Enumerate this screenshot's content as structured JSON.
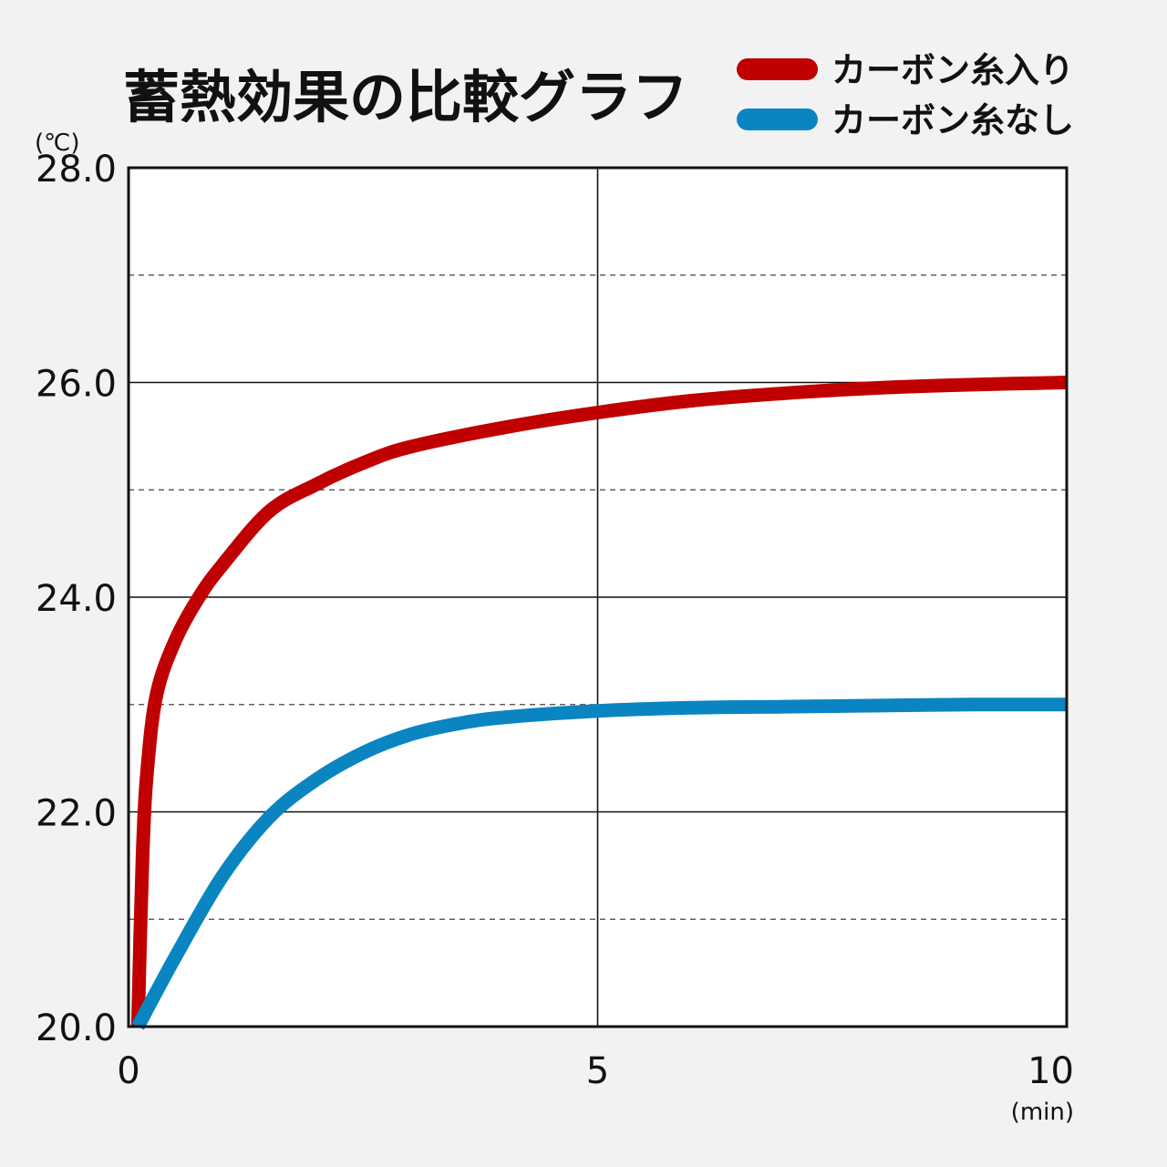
{
  "chart_data": {
    "type": "line",
    "title": "蓄熱効果の比較グラフ",
    "y_unit": "(℃)",
    "x_unit": "(min)",
    "xlim": [
      0,
      10
    ],
    "ylim": [
      20,
      28
    ],
    "x_ticks": [
      0,
      5,
      10
    ],
    "x_tick_labels": [
      "0",
      "5",
      "10"
    ],
    "y_ticks": [
      20,
      22,
      24,
      26,
      28
    ],
    "y_tick_labels": [
      "20.0",
      "22.0",
      "24.0",
      "26.0",
      "28.0"
    ],
    "y_minor_dashed": [
      21,
      23,
      25,
      27
    ],
    "grid": true,
    "legend_position": "top-right",
    "series": [
      {
        "name": "カーボン糸入り",
        "color": "#c00000",
        "x": [
          0.1,
          0.15,
          0.2,
          0.3,
          0.5,
          0.75,
          1,
          1.5,
          2,
          2.5,
          3,
          4,
          5,
          6,
          7,
          8,
          9,
          10
        ],
        "y": [
          20.0,
          21.6,
          22.4,
          23.1,
          23.6,
          24.0,
          24.3,
          24.8,
          25.05,
          25.25,
          25.4,
          25.58,
          25.72,
          25.83,
          25.9,
          25.95,
          25.98,
          26.0
        ]
      },
      {
        "name": "カーボン糸なし",
        "color": "#0a85c2",
        "x": [
          0.1,
          0.5,
          1,
          1.5,
          2,
          2.5,
          3,
          3.5,
          4,
          5,
          6,
          7,
          8,
          9,
          10
        ],
        "y": [
          20.0,
          20.65,
          21.4,
          21.95,
          22.3,
          22.55,
          22.72,
          22.82,
          22.88,
          22.94,
          22.97,
          22.98,
          22.99,
          23.0,
          23.0
        ]
      }
    ]
  }
}
